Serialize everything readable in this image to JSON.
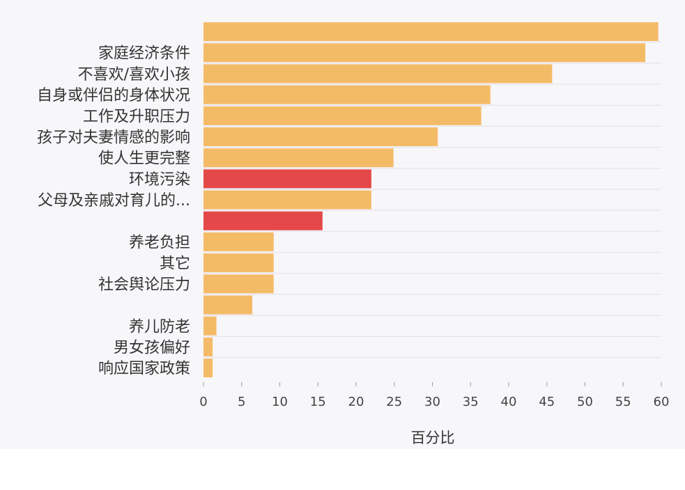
{
  "chart_data": {
    "type": "bar",
    "orientation": "horizontal",
    "categories": [
      "",
      "家庭经济条件",
      "不喜欢/喜欢小孩",
      "自身或伴侣的身体状况",
      "工作及升职压力",
      "孩子对夫妻情感的影响",
      "使人生更完整",
      "环境污染",
      "父母及亲戚对育儿的...",
      "",
      "养老负担",
      "其它",
      "社会舆论压力",
      "",
      "养儿防老",
      "男女孩偏好",
      "响应国家政策"
    ],
    "values": [
      59.6,
      57.9,
      45.7,
      37.6,
      36.4,
      30.7,
      24.9,
      22.0,
      22.0,
      15.6,
      9.2,
      9.2,
      9.2,
      6.4,
      1.7,
      1.2,
      1.2
    ],
    "highlighted_indices": [
      7,
      9
    ],
    "xlabel": "百分比",
    "ylabel": "",
    "xlim": [
      0,
      60
    ],
    "xticks": [
      0,
      5,
      10,
      15,
      20,
      25,
      30,
      35,
      40,
      45,
      50,
      55,
      60
    ],
    "grid": "horizontal",
    "colors": {
      "bar": "#f4bb67",
      "highlight": "#e54848",
      "grid": "#e8e6ee",
      "background": "#f7f6f9"
    }
  }
}
